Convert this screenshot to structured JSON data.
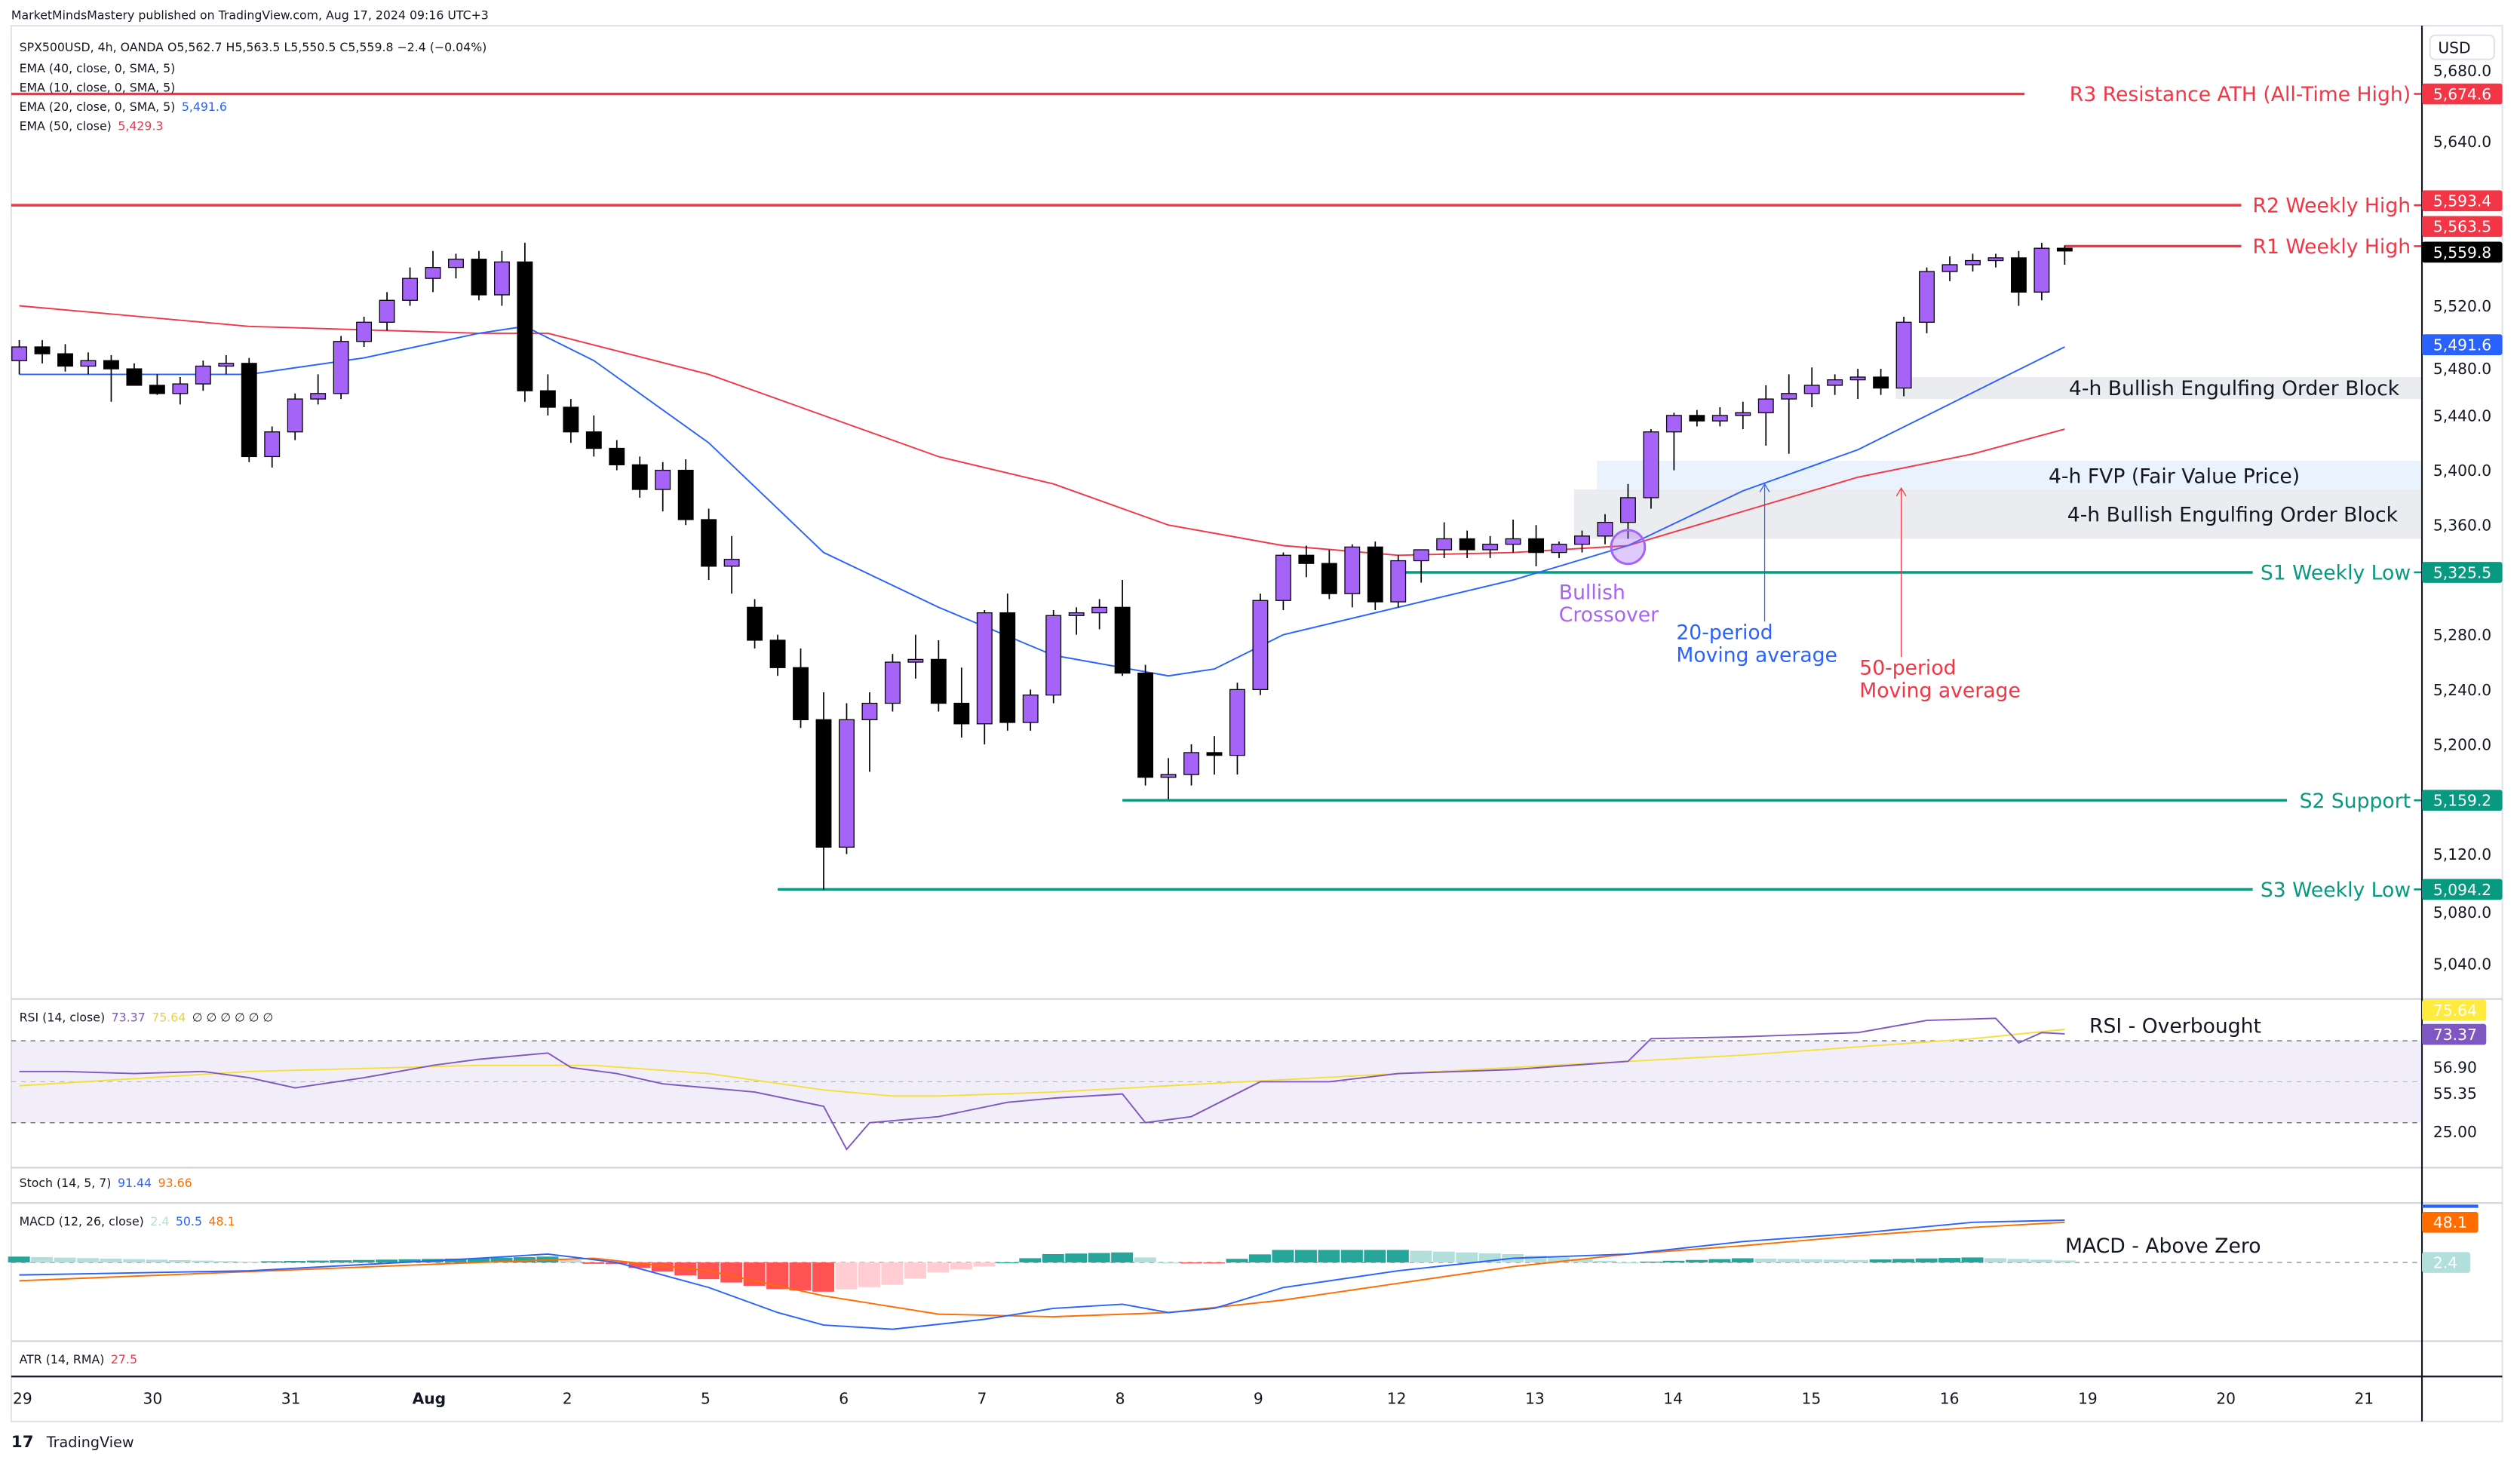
{
  "publisher_line": "MarketMindsMastery published on TradingView.com, Aug 17, 2024 09:16 UTC+3",
  "legend": {
    "symbol_line": "SPX500USD, 4h, OANDA  O5,562.7  H5,563.5  L5,550.5  C5,559.8  −2.4 (−0.04%)",
    "ema40": "EMA (40, close, 0, SMA, 5)",
    "ema10": "EMA (10, close, 0, SMA, 5)",
    "ema20": "EMA (20, close, 0, SMA, 5)",
    "ema20_value": "5,491.6",
    "ema50": "EMA (50, close)",
    "ema50_value": "5,429.3"
  },
  "colors": {
    "up": "#a663f7",
    "down": "#000000",
    "ema20": "#2962ff",
    "ema50": "#f23645",
    "resistance": "#f23645",
    "support": "#089981",
    "rsi": "#7e57c2",
    "rsi_signal": "#ffeb3b",
    "macd": "#2962ff",
    "macd_signal": "#ff6d00",
    "crossover": "#a663f7"
  },
  "chart_data": {
    "type": "candlestick",
    "symbol": "SPX500USD",
    "interval": "4h",
    "currency": "USD",
    "ylim": [
      5010,
      5700
    ],
    "price_ticks": [
      "5,680.0",
      "5,640.0",
      "5,520.0",
      "5,480.0",
      "5,440.0",
      "5,400.0",
      "5,360.0",
      "5,280.0",
      "5,240.0",
      "5,200.0",
      "5,120.0",
      "5,080.0",
      "5,040.0"
    ],
    "x_tick_labels": [
      "29",
      "30",
      "31",
      "Aug",
      "2",
      "5",
      "6",
      "7",
      "8",
      "9",
      "12",
      "13",
      "14",
      "15",
      "16",
      "19",
      "20",
      "21"
    ],
    "ohlc": [
      [
        5480,
        5495,
        5470,
        5490
      ],
      [
        5490,
        5495,
        5478,
        5485
      ],
      [
        5485,
        5492,
        5472,
        5476
      ],
      [
        5476,
        5486,
        5470,
        5480
      ],
      [
        5480,
        5484,
        5450,
        5474
      ],
      [
        5474,
        5478,
        5462,
        5462
      ],
      [
        5462,
        5470,
        5455,
        5456
      ],
      [
        5456,
        5468,
        5448,
        5463
      ],
      [
        5463,
        5480,
        5458,
        5476
      ],
      [
        5476,
        5484,
        5470,
        5478
      ],
      [
        5478,
        5482,
        5406,
        5410
      ],
      [
        5410,
        5432,
        5402,
        5428
      ],
      [
        5428,
        5456,
        5422,
        5452
      ],
      [
        5452,
        5470,
        5448,
        5456
      ],
      [
        5456,
        5498,
        5452,
        5494
      ],
      [
        5494,
        5512,
        5490,
        5508
      ],
      [
        5508,
        5530,
        5502,
        5524
      ],
      [
        5524,
        5548,
        5520,
        5540
      ],
      [
        5540,
        5560,
        5530,
        5548
      ],
      [
        5548,
        5558,
        5540,
        5554
      ],
      [
        5554,
        5560,
        5524,
        5528
      ],
      [
        5528,
        5560,
        5520,
        5552
      ],
      [
        5552,
        5566,
        5450,
        5458
      ],
      [
        5458,
        5470,
        5440,
        5446
      ],
      [
        5446,
        5452,
        5420,
        5428
      ],
      [
        5428,
        5440,
        5410,
        5416
      ],
      [
        5416,
        5422,
        5400,
        5404
      ],
      [
        5404,
        5410,
        5380,
        5386
      ],
      [
        5386,
        5406,
        5370,
        5400
      ],
      [
        5400,
        5408,
        5360,
        5364
      ],
      [
        5364,
        5372,
        5320,
        5330
      ],
      [
        5330,
        5352,
        5310,
        5335
      ],
      [
        5300,
        5306,
        5270,
        5276
      ],
      [
        5276,
        5280,
        5250,
        5256
      ],
      [
        5256,
        5270,
        5212,
        5218
      ],
      [
        5218,
        5238,
        5094,
        5125
      ],
      [
        5125,
        5230,
        5120,
        5218
      ],
      [
        5218,
        5238,
        5180,
        5230
      ],
      [
        5230,
        5266,
        5224,
        5260
      ],
      [
        5260,
        5280,
        5248,
        5262
      ],
      [
        5262,
        5276,
        5224,
        5230
      ],
      [
        5230,
        5256,
        5205,
        5215
      ],
      [
        5215,
        5298,
        5200,
        5296
      ],
      [
        5296,
        5310,
        5210,
        5216
      ],
      [
        5216,
        5240,
        5210,
        5236
      ],
      [
        5236,
        5298,
        5230,
        5294
      ],
      [
        5294,
        5300,
        5280,
        5296
      ],
      [
        5296,
        5306,
        5284,
        5300
      ],
      [
        5300,
        5320,
        5250,
        5252
      ],
      [
        5252,
        5258,
        5170,
        5176
      ],
      [
        5176,
        5190,
        5160,
        5178
      ],
      [
        5178,
        5200,
        5170,
        5194
      ],
      [
        5194,
        5206,
        5178,
        5192
      ],
      [
        5192,
        5245,
        5178,
        5240
      ],
      [
        5240,
        5310,
        5236,
        5305
      ],
      [
        5305,
        5340,
        5298,
        5338
      ],
      [
        5338,
        5345,
        5322,
        5332
      ],
      [
        5332,
        5342,
        5306,
        5310
      ],
      [
        5310,
        5346,
        5300,
        5344
      ],
      [
        5344,
        5348,
        5298,
        5304
      ],
      [
        5304,
        5338,
        5300,
        5334
      ],
      [
        5334,
        5342,
        5318,
        5342
      ],
      [
        5342,
        5362,
        5336,
        5350
      ],
      [
        5350,
        5356,
        5336,
        5342
      ],
      [
        5342,
        5352,
        5336,
        5346
      ],
      [
        5346,
        5364,
        5340,
        5350
      ],
      [
        5350,
        5360,
        5330,
        5340
      ],
      [
        5340,
        5348,
        5336,
        5346
      ],
      [
        5346,
        5356,
        5340,
        5352
      ],
      [
        5352,
        5368,
        5346,
        5362
      ],
      [
        5362,
        5390,
        5350,
        5380
      ],
      [
        5380,
        5430,
        5372,
        5428
      ],
      [
        5428,
        5442,
        5400,
        5440
      ],
      [
        5440,
        5444,
        5432,
        5436
      ],
      [
        5436,
        5446,
        5432,
        5440
      ],
      [
        5440,
        5450,
        5430,
        5442
      ],
      [
        5442,
        5462,
        5418,
        5452
      ],
      [
        5452,
        5470,
        5412,
        5456
      ],
      [
        5456,
        5475,
        5446,
        5462
      ],
      [
        5462,
        5470,
        5455,
        5466
      ],
      [
        5466,
        5474,
        5452,
        5468
      ],
      [
        5468,
        5474,
        5455,
        5460
      ],
      [
        5460,
        5512,
        5454,
        5508
      ],
      [
        5508,
        5548,
        5500,
        5545
      ],
      [
        5545,
        5556,
        5538,
        5550
      ],
      [
        5550,
        5558,
        5545,
        5553
      ],
      [
        5553,
        5558,
        5548,
        5555
      ],
      [
        5555,
        5560,
        5520,
        5530
      ],
      [
        5530,
        5566,
        5524,
        5562
      ],
      [
        5562,
        5564,
        5550,
        5560
      ]
    ],
    "ema20": [
      [
        0,
        5470
      ],
      [
        10,
        5470
      ],
      [
        15,
        5482
      ],
      [
        20,
        5500
      ],
      [
        22,
        5505
      ],
      [
        25,
        5480
      ],
      [
        30,
        5420
      ],
      [
        35,
        5340
      ],
      [
        40,
        5300
      ],
      [
        45,
        5265
      ],
      [
        50,
        5250
      ],
      [
        52,
        5255
      ],
      [
        55,
        5280
      ],
      [
        60,
        5300
      ],
      [
        65,
        5320
      ],
      [
        70,
        5345
      ],
      [
        75,
        5385
      ],
      [
        80,
        5415
      ],
      [
        83,
        5440
      ],
      [
        86,
        5465
      ],
      [
        89,
        5490
      ]
    ],
    "ema50": [
      [
        0,
        5520
      ],
      [
        10,
        5505
      ],
      [
        20,
        5500
      ],
      [
        23,
        5500
      ],
      [
        30,
        5470
      ],
      [
        35,
        5440
      ],
      [
        40,
        5410
      ],
      [
        45,
        5390
      ],
      [
        50,
        5360
      ],
      [
        55,
        5345
      ],
      [
        60,
        5338
      ],
      [
        65,
        5340
      ],
      [
        70,
        5345
      ],
      [
        75,
        5370
      ],
      [
        80,
        5395
      ],
      [
        85,
        5412
      ],
      [
        89,
        5430
      ]
    ],
    "levels": [
      {
        "label": "R3 Resistance ATH (All-Time High)",
        "price": 5674.6,
        "badge": "5,674.6",
        "kind": "resistance",
        "from_bar": null
      },
      {
        "label": "R2 Weekly High",
        "price": 5593.4,
        "badge": "5,593.4",
        "kind": "resistance",
        "from_bar": null
      },
      {
        "label": "R1 Weekly High",
        "price": 5563.5,
        "badge": "5,563.5",
        "kind": "resistance",
        "from_bar": 89
      },
      {
        "label": "S1 Weekly Low",
        "price": 5325.5,
        "badge": "5,325.5",
        "kind": "support",
        "from_bar": 60
      },
      {
        "label": "S2 Support",
        "price": 5159.2,
        "badge": "5,159.2",
        "kind": "support",
        "from_bar": 48
      },
      {
        "label": "S3 Weekly Low",
        "price": 5094.2,
        "badge": "5,094.2",
        "kind": "support",
        "from_bar": 33
      }
    ],
    "last_price_badge": "5,559.8",
    "ema20_badge": "5,491.6",
    "zones": [
      {
        "label": "4-h Bullish Engulfing Order Block",
        "top": 5468,
        "bottom": 5452,
        "from_bar": 82,
        "kind": "order-block"
      },
      {
        "label": "4-h FVP (Fair Value Price)",
        "top": 5407,
        "bottom": 5385,
        "from_bar": 69,
        "kind": "fvp"
      },
      {
        "label": "4-h Bullish Engulfing Order Block",
        "top": 5386,
        "bottom": 5350,
        "from_bar": 68,
        "kind": "order-block"
      }
    ],
    "annotations": {
      "crossover": {
        "line1": "Bullish",
        "line2": "Crossover",
        "bar": 70,
        "price": 5344
      },
      "ema20_note": {
        "line1": "20-period",
        "line2": "Moving average",
        "bar": 76,
        "price": 5390
      },
      "ema50_note": {
        "line1": "50-period",
        "line2": "Moving average",
        "bar": 82,
        "price": 5387
      }
    },
    "rsi": {
      "legend": "RSI (14, close)",
      "value": "73.37",
      "signal_value": "75.64",
      "extra": "∅ ∅ ∅ ∅ ∅ ∅",
      "note": "RSI - Overbought",
      "ticks": [
        "56.90",
        "55.35",
        "25.00"
      ],
      "bands": [
        70,
        30
      ],
      "line": [
        [
          0,
          55
        ],
        [
          2,
          55
        ],
        [
          5,
          54
        ],
        [
          8,
          55
        ],
        [
          10,
          52
        ],
        [
          12,
          47
        ],
        [
          15,
          52
        ],
        [
          18,
          58
        ],
        [
          20,
          61
        ],
        [
          23,
          64
        ],
        [
          24,
          57
        ],
        [
          26,
          54
        ],
        [
          28,
          49
        ],
        [
          32,
          45
        ],
        [
          35,
          38
        ],
        [
          36,
          17
        ],
        [
          37,
          30
        ],
        [
          40,
          33
        ],
        [
          43,
          40
        ],
        [
          45,
          42
        ],
        [
          48,
          44
        ],
        [
          49,
          30
        ],
        [
          51,
          33
        ],
        [
          54,
          50
        ],
        [
          57,
          50
        ],
        [
          60,
          54
        ],
        [
          65,
          56
        ],
        [
          70,
          60
        ],
        [
          71,
          71
        ],
        [
          75,
          72
        ],
        [
          80,
          74
        ],
        [
          83,
          80
        ],
        [
          86,
          81
        ],
        [
          87,
          69
        ],
        [
          88,
          74
        ],
        [
          89,
          73.4
        ]
      ],
      "signal": [
        [
          0,
          48
        ],
        [
          10,
          55
        ],
        [
          20,
          58
        ],
        [
          25,
          58
        ],
        [
          30,
          54
        ],
        [
          35,
          46
        ],
        [
          38,
          43
        ],
        [
          40,
          43
        ],
        [
          45,
          45
        ],
        [
          50,
          48
        ],
        [
          55,
          51
        ],
        [
          60,
          54
        ],
        [
          65,
          57
        ],
        [
          70,
          60
        ],
        [
          75,
          63
        ],
        [
          80,
          67
        ],
        [
          85,
          71
        ],
        [
          89,
          75.6
        ]
      ]
    },
    "stoch": {
      "legend": "Stoch (14, 5, 7)",
      "k": "91.44",
      "d": "93.66"
    },
    "macd": {
      "legend": "MACD (12, 26, close)",
      "hist_value": "2.4",
      "macd_value": "50.5",
      "signal_value": "48.1",
      "note": "MACD - Above Zero",
      "line": [
        [
          0,
          -15
        ],
        [
          10,
          -10
        ],
        [
          20,
          5
        ],
        [
          23,
          10
        ],
        [
          26,
          0
        ],
        [
          30,
          -30
        ],
        [
          33,
          -60
        ],
        [
          35,
          -75
        ],
        [
          38,
          -80
        ],
        [
          42,
          -68
        ],
        [
          45,
          -55
        ],
        [
          48,
          -50
        ],
        [
          50,
          -60
        ],
        [
          52,
          -55
        ],
        [
          55,
          -30
        ],
        [
          60,
          -10
        ],
        [
          65,
          5
        ],
        [
          70,
          10
        ],
        [
          75,
          25
        ],
        [
          80,
          35
        ],
        [
          85,
          48
        ],
        [
          89,
          50.5
        ]
      ],
      "signal": [
        [
          0,
          -22
        ],
        [
          20,
          0
        ],
        [
          25,
          5
        ],
        [
          30,
          -10
        ],
        [
          35,
          -40
        ],
        [
          40,
          -62
        ],
        [
          45,
          -65
        ],
        [
          50,
          -60
        ],
        [
          55,
          -45
        ],
        [
          60,
          -25
        ],
        [
          65,
          -5
        ],
        [
          70,
          10
        ],
        [
          75,
          20
        ],
        [
          80,
          32
        ],
        [
          85,
          42
        ],
        [
          89,
          48.1
        ]
      ]
    },
    "atr": {
      "legend": "ATR (14, RMA)",
      "value": "27.5"
    }
  },
  "footer": {
    "brand": "TradingView"
  }
}
